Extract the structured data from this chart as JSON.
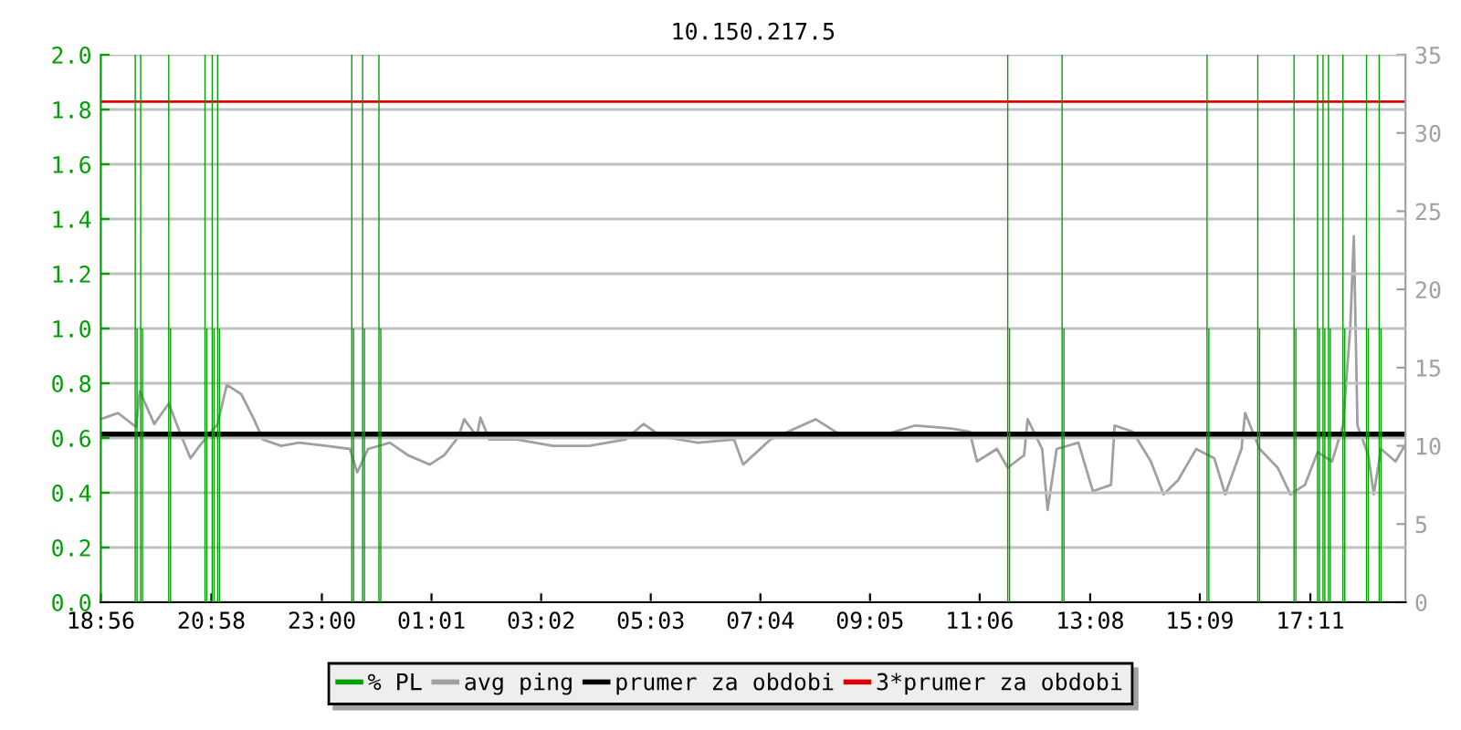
{
  "chart_data": {
    "type": "line",
    "title": "10.150.217.5",
    "xlim": [
      "2000-01-01T18:56",
      "2000-01-02T18:56"
    ],
    "xticks": [
      {
        "value": "2000-01-01T18:56",
        "label": "18:56"
      },
      {
        "value": "2000-01-01T20:58",
        "label": "20:58"
      },
      {
        "value": "2000-01-01T23:00",
        "label": "23:00"
      },
      {
        "value": "2000-01-02T01:01",
        "label": "01:01"
      },
      {
        "value": "2000-01-02T03:02",
        "label": "03:02"
      },
      {
        "value": "2000-01-02T05:03",
        "label": "05:03"
      },
      {
        "value": "2000-01-02T07:04",
        "label": "07:04"
      },
      {
        "value": "2000-01-02T09:05",
        "label": "09:05"
      },
      {
        "value": "2000-01-02T11:06",
        "label": "11:06"
      },
      {
        "value": "2000-01-02T13:08",
        "label": "13:08"
      },
      {
        "value": "2000-01-02T15:09",
        "label": "15:09"
      },
      {
        "value": "2000-01-02T17:11",
        "label": "17:11"
      }
    ],
    "ylim": [
      0,
      2.0
    ],
    "yticks": [
      {
        "value": 0,
        "label": "0.0"
      },
      0.2,
      0.4,
      0.6,
      0.8,
      {
        "value": 1,
        "label": "1.0"
      },
      1.2,
      1.4,
      1.6,
      1.8,
      {
        "value": 2,
        "label": "2.0"
      }
    ],
    "y2lim": [
      0,
      35
    ],
    "y2ticks": [
      0,
      5,
      10,
      15,
      20,
      25,
      30,
      35
    ],
    "grid": "y",
    "legend": "bottom",
    "series": [
      {
        "name": "% PL",
        "type": "bar",
        "color": "#00a000",
        "x": [
          "2000-01-01T19:34",
          "2000-01-01T19:36",
          "2000-01-01T19:40",
          "2000-01-01T19:42",
          "2000-01-01T20:11",
          "2000-01-01T20:13",
          "2000-01-01T20:51",
          "2000-01-01T20:53",
          "2000-01-01T20:59",
          "2000-01-01T21:01",
          "2000-01-01T21:05",
          "2000-01-01T21:07",
          "2000-01-01T23:33",
          "2000-01-01T23:35",
          "2000-01-01T23:45",
          "2000-01-01T23:47",
          "2000-01-02T00:03",
          "2000-01-02T00:05",
          "2000-01-02T11:37",
          "2000-01-02T11:39",
          "2000-01-02T12:37",
          "2000-01-02T12:39",
          "2000-01-02T15:17",
          "2000-01-02T15:19",
          "2000-01-02T16:13",
          "2000-01-02T16:15",
          "2000-01-02T16:53",
          "2000-01-02T16:55",
          "2000-01-02T17:19",
          "2000-01-02T17:21",
          "2000-01-02T17:25",
          "2000-01-02T17:27",
          "2000-01-02T17:31",
          "2000-01-02T17:33",
          "2000-01-02T17:47",
          "2000-01-02T17:49",
          "2000-01-02T18:13",
          "2000-01-02T18:15",
          "2000-01-02T18:27",
          "2000-01-02T18:29"
        ],
        "values": [
          2.0,
          1.0,
          2.0,
          1.0,
          2.0,
          1.0,
          2.0,
          1.0,
          2.0,
          1.0,
          2.0,
          1.0,
          2.0,
          1.0,
          2.0,
          1.0,
          2.0,
          1.0,
          2.0,
          1.0,
          2.0,
          1.0,
          2.0,
          1.0,
          2.0,
          1.0,
          2.0,
          1.0,
          2.0,
          1.0,
          2.0,
          1.0,
          2.0,
          1.0,
          2.0,
          1.0,
          2.0,
          1.0,
          2.0,
          1.0
        ]
      },
      {
        "name": "avg ping",
        "axis": "y2",
        "color": "#a0a0a0",
        "x": [
          "2000-01-01T18:56",
          "2000-01-01T19:15",
          "2000-01-01T19:35",
          "2000-01-01T19:39",
          "2000-01-01T19:55",
          "2000-01-01T20:11",
          "2000-01-01T20:25",
          "2000-01-01T20:35",
          "2000-01-01T20:45",
          "2000-01-01T21:05",
          "2000-01-01T21:15",
          "2000-01-01T21:31",
          "2000-01-01T21:45",
          "2000-01-01T21:55",
          "2000-01-01T22:15",
          "2000-01-01T22:35",
          "2000-01-01T23:05",
          "2000-01-01T23:31",
          "2000-01-01T23:39",
          "2000-01-01T23:51",
          "2000-01-02T00:15",
          "2000-01-02T00:35",
          "2000-01-02T00:59",
          "2000-01-02T01:15",
          "2000-01-02T01:31",
          "2000-01-02T01:37",
          "2000-01-02T01:51",
          "2000-01-02T01:55",
          "2000-01-02T02:05",
          "2000-01-02T02:35",
          "2000-01-02T03:15",
          "2000-01-02T03:55",
          "2000-01-02T04:35",
          "2000-01-02T04:55",
          "2000-01-02T05:15",
          "2000-01-02T05:55",
          "2000-01-02T06:35",
          "2000-01-02T06:45",
          "2000-01-02T07:15",
          "2000-01-02T08:05",
          "2000-01-02T08:35",
          "2000-01-02T09:15",
          "2000-01-02T09:55",
          "2000-01-02T10:35",
          "2000-01-02T10:55",
          "2000-01-02T11:03",
          "2000-01-02T11:25",
          "2000-01-02T11:37",
          "2000-01-02T11:55",
          "2000-01-02T11:59",
          "2000-01-02T12:15",
          "2000-01-02T12:21",
          "2000-01-02T12:31",
          "2000-01-02T12:55",
          "2000-01-02T13:11",
          "2000-01-02T13:31",
          "2000-01-02T13:35",
          "2000-01-02T13:55",
          "2000-01-02T14:15",
          "2000-01-02T14:29",
          "2000-01-02T14:45",
          "2000-01-02T15:05",
          "2000-01-02T15:25",
          "2000-01-02T15:37",
          "2000-01-02T15:55",
          "2000-01-02T15:59",
          "2000-01-02T16:15",
          "2000-01-02T16:35",
          "2000-01-02T16:49",
          "2000-01-02T17:05",
          "2000-01-02T17:19",
          "2000-01-02T17:35",
          "2000-01-02T17:47",
          "2000-01-02T17:55",
          "2000-01-02T17:59",
          "2000-01-02T18:03",
          "2000-01-02T18:15",
          "2000-01-02T18:21",
          "2000-01-02T18:29",
          "2000-01-02T18:45",
          "2000-01-02T18:55"
        ],
        "values": [
          11.7,
          12.1,
          11.2,
          13.5,
          11.4,
          12.7,
          10.6,
          9.2,
          10.0,
          11.4,
          13.9,
          13.3,
          11.7,
          10.4,
          10.0,
          10.2,
          10.0,
          9.8,
          8.3,
          9.8,
          10.2,
          9.4,
          8.8,
          9.4,
          10.6,
          11.7,
          10.6,
          11.8,
          10.4,
          10.4,
          10.0,
          10.0,
          10.4,
          11.4,
          10.6,
          10.2,
          10.4,
          8.8,
          10.4,
          11.7,
          10.6,
          10.6,
          11.3,
          11.1,
          10.9,
          9.0,
          9.8,
          8.6,
          9.4,
          11.7,
          9.8,
          5.9,
          9.8,
          10.2,
          7.1,
          7.5,
          11.3,
          10.9,
          9.0,
          6.9,
          7.8,
          9.8,
          9.2,
          6.9,
          9.8,
          12.1,
          9.8,
          8.6,
          6.9,
          7.5,
          9.6,
          9.0,
          11.3,
          17.5,
          23.4,
          11.3,
          9.4,
          6.9,
          9.8,
          9.0,
          10.0
        ]
      },
      {
        "name": "prumer za obdobi",
        "axis": "y2",
        "color": "#000000",
        "x": [
          "2000-01-01T18:56",
          "2000-01-02T18:56"
        ],
        "values": [
          10.7,
          10.7
        ]
      },
      {
        "name": "3*prumer za obdobi",
        "axis": "y2",
        "color": "#e00000",
        "x": [
          "2000-01-01T18:56",
          "2000-01-02T18:56"
        ],
        "values": [
          32.0,
          32.0
        ]
      }
    ]
  }
}
